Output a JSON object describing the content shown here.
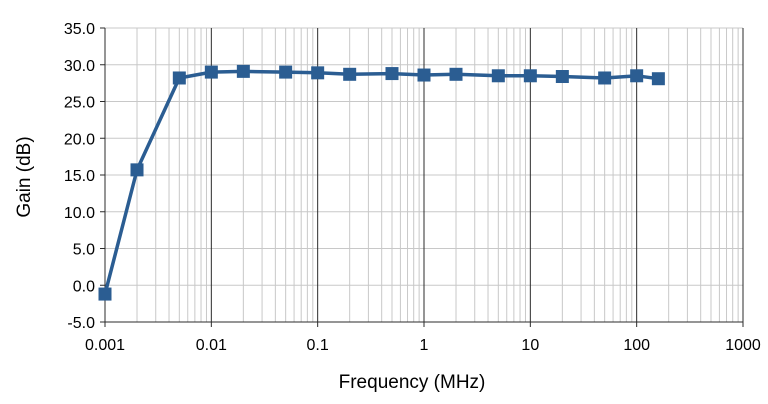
{
  "chart_data": {
    "type": "line",
    "title": "",
    "xlabel": "Frequency (MHz)",
    "ylabel": "Gain (dB)",
    "x_scale": "log",
    "xlim": [
      0.001,
      1000
    ],
    "ylim": [
      -5.0,
      35.0
    ],
    "x_ticks": [
      "0.001",
      "0.01",
      "0.1",
      "1",
      "10",
      "100",
      "1000"
    ],
    "y_ticks": [
      "-5.0",
      "0.0",
      "5.0",
      "10.0",
      "15.0",
      "20.0",
      "25.0",
      "30.0",
      "35.0"
    ],
    "grid": true,
    "legend": "none",
    "series": [
      {
        "x": [
          0.001,
          0.002,
          0.005,
          0.01,
          0.02,
          0.05,
          0.1,
          0.2,
          0.5,
          1,
          2,
          5,
          10,
          20,
          50,
          100,
          160
        ],
        "y": [
          -1.2,
          15.7,
          28.2,
          29.0,
          29.1,
          29.0,
          28.9,
          28.7,
          28.8,
          28.6,
          28.7,
          28.5,
          28.5,
          28.4,
          28.2,
          28.5,
          28.1
        ],
        "color": "#2b5d92",
        "marker": "square"
      }
    ]
  }
}
